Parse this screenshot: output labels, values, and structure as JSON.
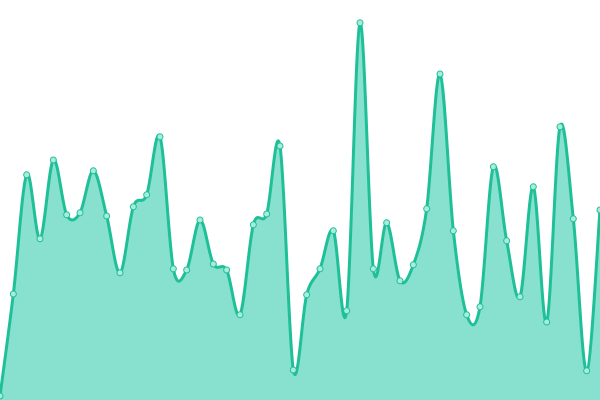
{
  "chart_data": {
    "type": "area",
    "title": "",
    "xlabel": "",
    "ylabel": "",
    "grid": false,
    "legend": "none",
    "ylim": [
      0,
      100
    ],
    "x": [
      0,
      1,
      2,
      3,
      4,
      5,
      6,
      7,
      8,
      9,
      10,
      11,
      12,
      13,
      14,
      15,
      16,
      17,
      18,
      19,
      20,
      21,
      22,
      23,
      24,
      25,
      26,
      27,
      28,
      29,
      30,
      31,
      32,
      33,
      34,
      35,
      36,
      37,
      38,
      39,
      40,
      41,
      42,
      43,
      44,
      45
    ],
    "values": [
      1,
      26.5,
      56.3,
      40.3,
      60,
      46.3,
      46.8,
      57.3,
      46,
      31.8,
      48.3,
      51.3,
      65.8,
      32.8,
      32.5,
      45,
      34,
      32.5,
      21.3,
      43.8,
      46.5,
      63.5,
      7.5,
      26.3,
      32.8,
      42.3,
      22.3,
      94.3,
      32.8,
      44.3,
      29.8,
      33.8,
      47.8,
      81.5,
      42.3,
      21.3,
      23.3,
      58.3,
      39.8,
      25.8,
      53.3,
      19.5,
      68.3,
      45.3,
      7.3,
      47.5
    ],
    "colors": {
      "line": "#1fbf98",
      "fill": "#88e0cf",
      "point_fill": "#a8ecdc"
    }
  }
}
